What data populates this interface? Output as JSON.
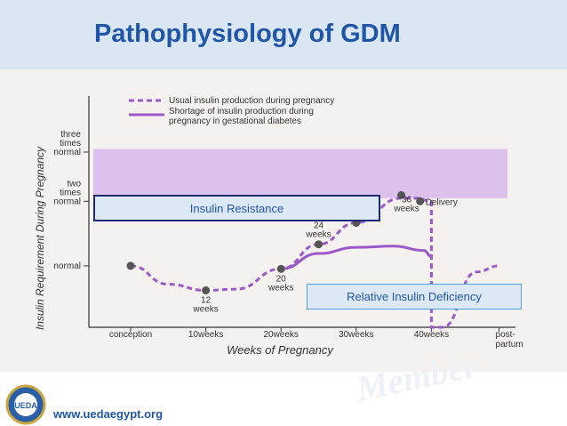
{
  "slide": {
    "title": "Pathophysiology of GDM",
    "footer_url": "www.uedaegypt.org",
    "logo_text": "UEDA",
    "watermark": "Member"
  },
  "boxes": {
    "resistance": "Insulin Resistance",
    "deficiency": "Relative Insulin Deficiency"
  },
  "colors": {
    "title": "#1f56a8",
    "band": "#d8b8ec",
    "curve": "#9b59c9",
    "box_fill": "#dde8f5"
  },
  "chart_data": {
    "type": "line",
    "xlabel": "Weeks of Pregnancy",
    "ylabel": "Insulin Requirement During Pregnancy",
    "x_ticks": [
      "conception",
      "10weeks",
      "20weeks",
      "30weeks",
      "40weeks",
      "post-partum"
    ],
    "y_ticks": [
      "normal",
      "two times normal",
      "three times normal"
    ],
    "xlim": [
      0,
      50
    ],
    "ylim": [
      0,
      3.4
    ],
    "legend": {
      "position": "top",
      "entries": [
        "Usual insulin production during pregnancy",
        "Shortage of insulin production during pregnancy in gestational diabetes"
      ]
    },
    "band": {
      "y_from": 2.1,
      "y_to": 2.9
    },
    "series": [
      {
        "name": "Usual insulin production during pregnancy",
        "style": "dashed",
        "x": [
          0,
          5,
          10,
          14,
          20,
          25,
          30,
          36,
          38,
          40,
          40,
          41.5,
          46,
          49
        ],
        "y": [
          1,
          0.7,
          0.6,
          0.62,
          0.95,
          1.35,
          1.7,
          2.1,
          2.1,
          2.05,
          0,
          0,
          0.9,
          1.0
        ]
      },
      {
        "name": "Shortage of insulin production during pregnancy in gestational diabetes",
        "style": "solid",
        "x": [
          20,
          25,
          30,
          35,
          39,
          40
        ],
        "y": [
          0.95,
          1.2,
          1.3,
          1.32,
          1.25,
          1.15
        ]
      }
    ],
    "markers": [
      {
        "x": 0,
        "y": 1,
        "label": ""
      },
      {
        "x": 10,
        "y": 0.6,
        "label": "12 weeks"
      },
      {
        "x": 20,
        "y": 0.95,
        "label": "20 weeks"
      },
      {
        "x": 25,
        "y": 1.35,
        "label": "24 weeks"
      },
      {
        "x": 30,
        "y": 1.7,
        "label": ""
      },
      {
        "x": 36,
        "y": 2.15,
        "label": "36 weeks"
      },
      {
        "x": 38.5,
        "y": 2.05,
        "label": "Delivery"
      }
    ]
  }
}
